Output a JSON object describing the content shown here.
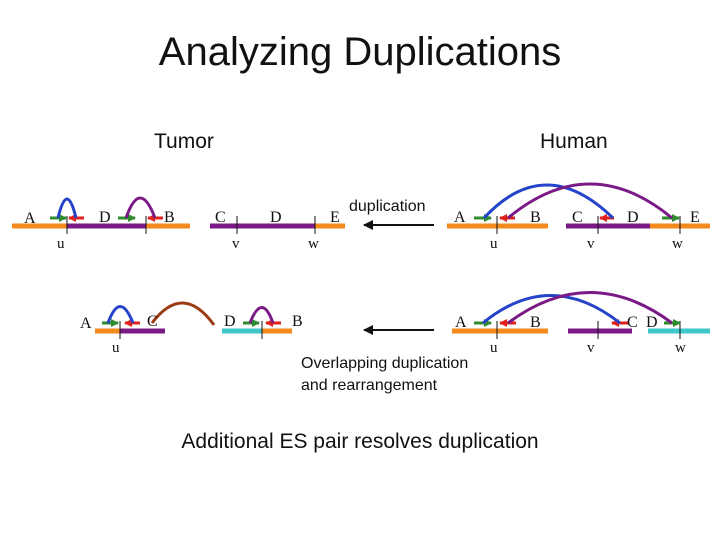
{
  "title": "Analyzing Duplications",
  "panels": {
    "tumor": {
      "label": "Tumor"
    },
    "human": {
      "label": "Human"
    }
  },
  "captions": {
    "duplication": "duplication",
    "overlapping_line1": "Overlapping duplication",
    "overlapping_line2": "and rearrangement",
    "bottom": "Additional ES pair resolves duplication"
  },
  "segments": {
    "tumor_top": [
      "A",
      "D",
      "B",
      "C",
      "D",
      "E"
    ],
    "tumor_bottom": [
      "A",
      "C",
      "D",
      "B"
    ],
    "human_top": [
      "A",
      "B",
      "C",
      "D",
      "E"
    ],
    "human_bottom": [
      "A",
      "B",
      "C",
      "D"
    ]
  },
  "points": {
    "tumor_top": [
      "u",
      "v",
      "w"
    ],
    "tumor_bottom": [
      "u"
    ],
    "human_top": [
      "u",
      "v",
      "w"
    ],
    "human_bottom": [
      "u",
      "v",
      "w"
    ]
  },
  "colors": {
    "orange": "#f28a1e",
    "purple": "#7a1a86",
    "cyan": "#3fc6c9",
    "green": "#2e8b2e",
    "red": "#e0201b",
    "blue": "#2443c9",
    "brown": "#9b3d14",
    "black": "#111111"
  }
}
